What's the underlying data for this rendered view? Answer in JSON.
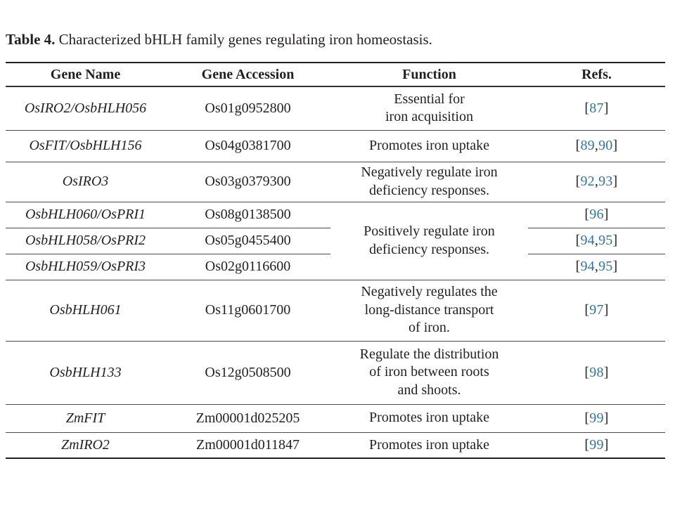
{
  "title": {
    "label": "Table 4.",
    "text": " Characterized bHLH family genes regulating iron homeostasis."
  },
  "colors": {
    "text": "#231f20",
    "ref_link_blue": "#2e72b1",
    "rule_dark": "#1e1e1e",
    "rule_gray": "#4a4a4a"
  },
  "table": {
    "headers": [
      "Gene Name",
      "Gene Accession",
      "Function",
      "Refs."
    ],
    "rows": [
      {
        "gene": "OsIRO2/OsbHLH056",
        "accession": "Os01g0952800",
        "function": "Essential for\niron acquisition",
        "refs": [
          87
        ]
      },
      {
        "gene": "OsFIT/OsbHLH156",
        "accession": "Os04g0381700",
        "function": "Promotes iron uptake",
        "refs": [
          89,
          90
        ]
      },
      {
        "gene": "OsIRO3",
        "accession": "Os03g0379300",
        "function": "Negatively regulate iron\ndeficiency responses.",
        "refs": [
          92,
          93
        ]
      },
      {
        "gene": "OsbHLH060/OsPRI1",
        "accession": "Os08g0138500",
        "function": "Positively regulate iron\ndeficiency responses.",
        "refs": [
          96
        ]
      },
      {
        "gene": "OsbHLH058/OsPRI2",
        "accession": "Os05g0455400",
        "refs": [
          94,
          95
        ]
      },
      {
        "gene": "OsbHLH059/OsPRI3",
        "accession": "Os02g0116600",
        "refs": [
          94,
          95
        ]
      },
      {
        "gene": "OsbHLH061",
        "accession": "Os11g0601700",
        "function": "Negatively regulates the\nlong-distance transport\nof iron.",
        "refs": [
          97
        ]
      },
      {
        "gene": "OsbHLH133",
        "accession": "Os12g0508500",
        "function": "Regulate the distribution\nof iron between roots\nand shoots.",
        "refs": [
          98
        ]
      },
      {
        "gene": "ZmFIT",
        "accession": "Zm00001d025205",
        "function": "Promotes iron uptake",
        "refs": [
          99
        ]
      },
      {
        "gene": "ZmIRO2",
        "accession": "Zm00001d011847",
        "function": "Promotes iron uptake",
        "refs": [
          99
        ]
      }
    ]
  }
}
